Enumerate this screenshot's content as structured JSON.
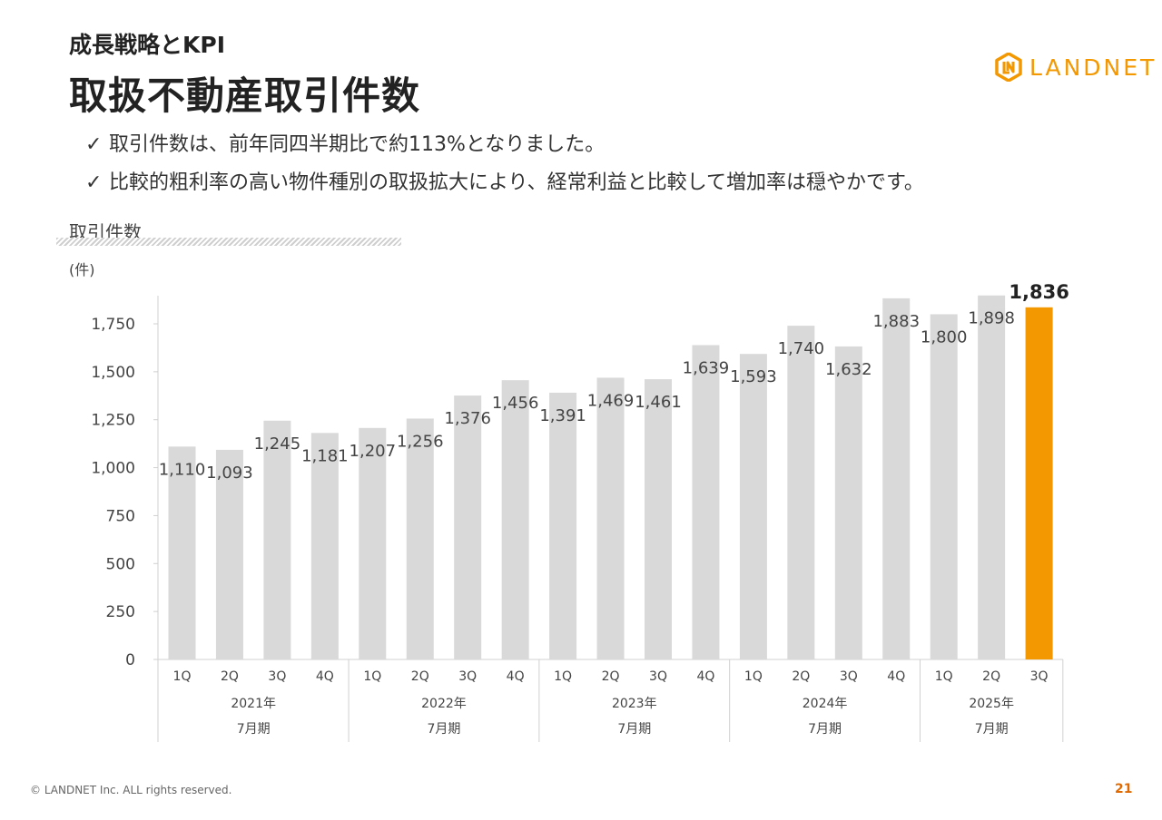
{
  "header": {
    "subtitle": "成長戦略とKPI",
    "title": "取扱不動産取引件数"
  },
  "logo": {
    "text": "LANDNET",
    "icon": "landnet-logo-icon",
    "color": "#f39800"
  },
  "bullets": [
    {
      "check": "✓",
      "text": "取引件数は、前年同四半期比で約113%となりました。"
    },
    {
      "check": "✓",
      "text": "比較的粗利率の高い物件種別の取扱拡大により、経常利益と比較して増加率は穏やかです。"
    }
  ],
  "chart_label": "取引件数",
  "chart_data": {
    "type": "bar",
    "unit": "(件)",
    "ylim": [
      0,
      1900
    ],
    "yticks": [
      0,
      250,
      500,
      750,
      1000,
      1250,
      1500,
      1750
    ],
    "ytick_labels": [
      "0",
      "250",
      "500",
      "750",
      "1,000",
      "1,250",
      "1,500",
      "1,750"
    ],
    "categories": [
      "1Q",
      "2Q",
      "3Q",
      "4Q",
      "1Q",
      "2Q",
      "3Q",
      "4Q",
      "1Q",
      "2Q",
      "3Q",
      "4Q",
      "1Q",
      "2Q",
      "3Q",
      "4Q",
      "1Q",
      "2Q",
      "3Q"
    ],
    "values": [
      1110,
      1093,
      1245,
      1181,
      1207,
      1256,
      1376,
      1456,
      1391,
      1469,
      1461,
      1639,
      1593,
      1740,
      1632,
      1883,
      1800,
      1898,
      1836
    ],
    "value_labels": [
      "1,110",
      "1,093",
      "1,245",
      "1,181",
      "1,207",
      "1,256",
      "1,376",
      "1,456",
      "1,391",
      "1,469",
      "1,461",
      "1,639",
      "1,593",
      "1,740",
      "1,632",
      "1,883",
      "1,800",
      "1,898",
      "1,836"
    ],
    "highlight_index": 18,
    "groups": [
      {
        "year": "2021年",
        "period": "7月期",
        "count": 4
      },
      {
        "year": "2022年",
        "period": "7月期",
        "count": 4
      },
      {
        "year": "2023年",
        "period": "7月期",
        "count": 4
      },
      {
        "year": "2024年",
        "period": "7月期",
        "count": 4
      },
      {
        "year": "2025年",
        "period": "7月期",
        "count": 3
      }
    ],
    "colors": {
      "bar": "#d9d9d9",
      "highlight": "#f39800",
      "axis": "#d0d0d0"
    },
    "grid": false
  },
  "footer": {
    "copyright": "© LANDNET Inc. ALL rights reserved.",
    "page": "21"
  }
}
